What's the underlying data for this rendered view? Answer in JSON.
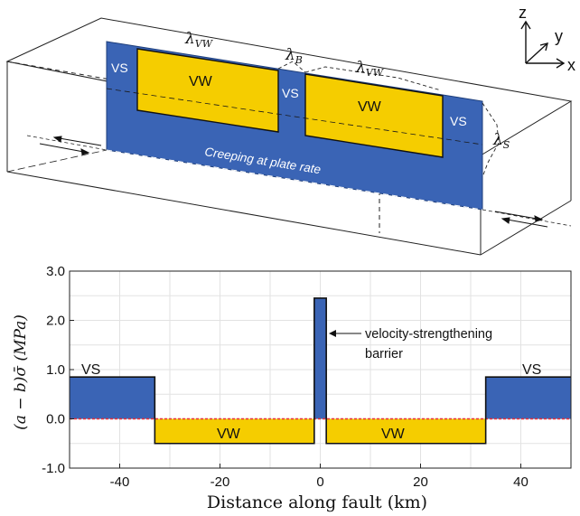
{
  "top": {
    "axes": {
      "z": "z",
      "y": "y",
      "x": "x"
    },
    "labels": {
      "lambda_vw_left": "λ",
      "lambda_vw_left_sub": "VW",
      "lambda_b": "λ",
      "lambda_b_sub": "B",
      "lambda_vw_right": "λ",
      "lambda_vw_right_sub": "VW",
      "lambda_s": "λ",
      "lambda_s_sub": "S",
      "vs_left": "VS",
      "vs_middle": "VS",
      "vs_right": "VS",
      "vw_left": "VW",
      "vw_right": "VW",
      "creeping": "Creeping at plate rate"
    }
  },
  "chart_data": {
    "type": "line",
    "xlabel": "Distance along fault (km)",
    "ylabel": "(a − b)σ̄ (MPa)",
    "xlim": [
      -50,
      50
    ],
    "ylim": [
      -1.0,
      3.0
    ],
    "xticks": [
      -40,
      -20,
      0,
      20,
      40
    ],
    "xtick_labels": [
      "-40",
      "-20",
      "0",
      "20",
      "40"
    ],
    "yticks": [
      -1.0,
      0.0,
      1.0,
      2.0,
      3.0
    ],
    "ytick_labels": [
      "-1.0",
      "0.0",
      "1.0",
      "2.0",
      "3.0"
    ],
    "grid": true,
    "series": [
      {
        "x": [
          -50,
          -33,
          -33,
          -1.2,
          -1.2,
          1.2,
          1.2,
          33,
          33,
          50
        ],
        "y": [
          0.85,
          0.85,
          -0.5,
          -0.5,
          2.45,
          2.45,
          -0.5,
          -0.5,
          0.85,
          0.85
        ]
      }
    ],
    "zero_line": 0.0,
    "region_labels": {
      "vs_left": "VS",
      "vw_left": "VW",
      "vw_right": "VW",
      "vs_right": "VS"
    },
    "annotation": {
      "line1": "velocity-strengthening",
      "line2": "barrier"
    },
    "colors": {
      "vs_fill": "#3a64b5",
      "vw_fill": "#f5cd00",
      "zero_line": "#e8303a"
    }
  }
}
